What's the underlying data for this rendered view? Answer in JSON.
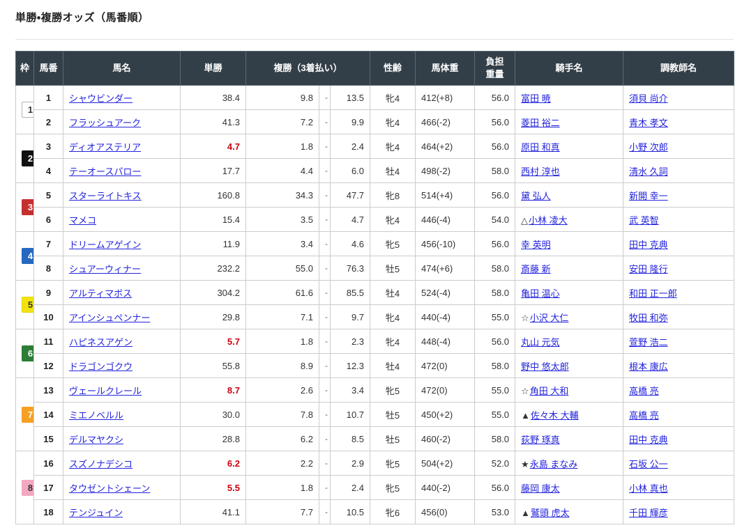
{
  "page": {
    "title": "単勝・複勝オッズ（馬番順）"
  },
  "colors": {
    "header_bg": "#333f48",
    "header_text": "#ffffff",
    "link_blue": "#2323dd",
    "odds_text": "#333333",
    "odds_highlight_red": "#cc0011",
    "grid_border": "#cccccc"
  },
  "table": {
    "headers": {
      "waku": "枠",
      "umaban": "馬番",
      "name": "馬名",
      "tansho": "単勝",
      "fukusho": "複勝（3着払い）",
      "seirei": "性齢",
      "bataiju": "馬体重",
      "futan": "負担重量",
      "kishu": "騎手名",
      "chokyoshi": "調教師名"
    },
    "separator": "-",
    "groups": [
      {
        "frame": "1",
        "frame_bg": "#ffffff",
        "frame_fg": "#333333",
        "frame_border": "#b3b3b3",
        "horses": [
          {
            "num": "1",
            "name": "シャウビンダー",
            "win": "38.4",
            "win_hot": false,
            "place_low": "9.8",
            "place_high": "13.5",
            "sex_age": "牝4",
            "weight": "412(+8)",
            "impost": "56.0",
            "jockey_mark": "",
            "jockey": "富田 暁",
            "trainer": "須貝 尚介"
          },
          {
            "num": "2",
            "name": "フラッシュアーク",
            "win": "41.3",
            "win_hot": false,
            "place_low": "7.2",
            "place_high": "9.9",
            "sex_age": "牝4",
            "weight": "466(-2)",
            "impost": "56.0",
            "jockey_mark": "",
            "jockey": "菱田 裕二",
            "trainer": "青木 孝文"
          }
        ]
      },
      {
        "frame": "2",
        "frame_bg": "#111111",
        "frame_fg": "#ffffff",
        "frame_border": "#111111",
        "horses": [
          {
            "num": "3",
            "name": "ディオアステリア",
            "win": "4.7",
            "win_hot": true,
            "place_low": "1.8",
            "place_high": "2.4",
            "sex_age": "牝4",
            "weight": "464(+2)",
            "impost": "56.0",
            "jockey_mark": "",
            "jockey": "原田 和真",
            "trainer": "小野 次郎"
          },
          {
            "num": "4",
            "name": "テーオースパロー",
            "win": "17.7",
            "win_hot": false,
            "place_low": "4.4",
            "place_high": "6.0",
            "sex_age": "牡4",
            "weight": "498(-2)",
            "impost": "58.0",
            "jockey_mark": "",
            "jockey": "西村 淳也",
            "trainer": "清水 久詞"
          }
        ]
      },
      {
        "frame": "3",
        "frame_bg": "#c5302e",
        "frame_fg": "#ffffff",
        "frame_border": "#c5302e",
        "horses": [
          {
            "num": "5",
            "name": "スターライトキス",
            "win": "160.8",
            "win_hot": false,
            "place_low": "34.3",
            "place_high": "47.7",
            "sex_age": "牝8",
            "weight": "514(+4)",
            "impost": "56.0",
            "jockey_mark": "",
            "jockey": "黛 弘人",
            "trainer": "新開 幸一"
          },
          {
            "num": "6",
            "name": "マメコ",
            "win": "15.4",
            "win_hot": false,
            "place_low": "3.5",
            "place_high": "4.7",
            "sex_age": "牝4",
            "weight": "446(-4)",
            "impost": "54.0",
            "jockey_mark": "△",
            "jockey": "小林 凌大",
            "trainer": "武 英智"
          }
        ]
      },
      {
        "frame": "4",
        "frame_bg": "#2668c0",
        "frame_fg": "#ffffff",
        "frame_border": "#2668c0",
        "horses": [
          {
            "num": "7",
            "name": "ドリームアゲイン",
            "win": "11.9",
            "win_hot": false,
            "place_low": "3.4",
            "place_high": "4.6",
            "sex_age": "牝5",
            "weight": "456(-10)",
            "impost": "56.0",
            "jockey_mark": "",
            "jockey": "幸 英明",
            "trainer": "田中 克典"
          },
          {
            "num": "8",
            "name": "シュアーウィナー",
            "win": "232.2",
            "win_hot": false,
            "place_low": "55.0",
            "place_high": "76.3",
            "sex_age": "牡5",
            "weight": "474(+6)",
            "impost": "58.0",
            "jockey_mark": "",
            "jockey": "斎藤 新",
            "trainer": "安田 隆行"
          }
        ]
      },
      {
        "frame": "5",
        "frame_bg": "#f2e30e",
        "frame_fg": "#333333",
        "frame_border": "#e3d40a",
        "horses": [
          {
            "num": "9",
            "name": "アルティマボス",
            "win": "304.2",
            "win_hot": false,
            "place_low": "61.6",
            "place_high": "85.5",
            "sex_age": "牡4",
            "weight": "524(-4)",
            "impost": "58.0",
            "jockey_mark": "",
            "jockey": "亀田 温心",
            "trainer": "和田 正一郎"
          },
          {
            "num": "10",
            "name": "アインシュペンナー",
            "win": "29.8",
            "win_hot": false,
            "place_low": "7.1",
            "place_high": "9.7",
            "sex_age": "牝4",
            "weight": "440(-4)",
            "impost": "55.0",
            "jockey_mark": "☆",
            "jockey": "小沢 大仁",
            "trainer": "牧田 和弥"
          }
        ]
      },
      {
        "frame": "6",
        "frame_bg": "#2c7d35",
        "frame_fg": "#ffffff",
        "frame_border": "#2c7d35",
        "horses": [
          {
            "num": "11",
            "name": "ハピネスアゲン",
            "win": "5.7",
            "win_hot": true,
            "place_low": "1.8",
            "place_high": "2.3",
            "sex_age": "牝4",
            "weight": "448(-4)",
            "impost": "56.0",
            "jockey_mark": "",
            "jockey": "丸山 元気",
            "trainer": "萱野 浩二"
          },
          {
            "num": "12",
            "name": "ドラゴンゴクウ",
            "win": "55.8",
            "win_hot": false,
            "place_low": "8.9",
            "place_high": "12.3",
            "sex_age": "牡4",
            "weight": "472(0)",
            "impost": "58.0",
            "jockey_mark": "",
            "jockey": "野中 悠太郎",
            "trainer": "根本 康広"
          }
        ]
      },
      {
        "frame": "7",
        "frame_bg": "#f5a024",
        "frame_fg": "#ffffff",
        "frame_border": "#f5a024",
        "horses": [
          {
            "num": "13",
            "name": "ヴェールクレール",
            "win": "8.7",
            "win_hot": true,
            "place_low": "2.6",
            "place_high": "3.4",
            "sex_age": "牝5",
            "weight": "472(0)",
            "impost": "55.0",
            "jockey_mark": "☆",
            "jockey": "角田 大和",
            "trainer": "高橋 亮"
          },
          {
            "num": "14",
            "name": "ミエノベルル",
            "win": "30.0",
            "win_hot": false,
            "place_low": "7.8",
            "place_high": "10.7",
            "sex_age": "牡5",
            "weight": "450(+2)",
            "impost": "55.0",
            "jockey_mark": "▲",
            "jockey": "佐々木 大輔",
            "trainer": "高橋 亮"
          },
          {
            "num": "15",
            "name": "デルマヤクシ",
            "win": "28.8",
            "win_hot": false,
            "place_low": "6.2",
            "place_high": "8.5",
            "sex_age": "牡5",
            "weight": "460(-2)",
            "impost": "58.0",
            "jockey_mark": "",
            "jockey": "荻野 琢真",
            "trainer": "田中 克典"
          }
        ]
      },
      {
        "frame": "8",
        "frame_bg": "#f3a8c0",
        "frame_fg": "#333333",
        "frame_border": "#f3a8c0",
        "horses": [
          {
            "num": "16",
            "name": "スズノナデシコ",
            "win": "6.2",
            "win_hot": true,
            "place_low": "2.2",
            "place_high": "2.9",
            "sex_age": "牝5",
            "weight": "504(+2)",
            "impost": "52.0",
            "jockey_mark": "★",
            "jockey": "永島 まなみ",
            "trainer": "石坂 公一"
          },
          {
            "num": "17",
            "name": "タウゼントシェーン",
            "win": "5.5",
            "win_hot": true,
            "place_low": "1.8",
            "place_high": "2.4",
            "sex_age": "牝5",
            "weight": "440(-2)",
            "impost": "56.0",
            "jockey_mark": "",
            "jockey": "藤岡 康太",
            "trainer": "小林 真也"
          },
          {
            "num": "18",
            "name": "テンジュイン",
            "win": "41.1",
            "win_hot": false,
            "place_low": "7.7",
            "place_high": "10.5",
            "sex_age": "牝6",
            "weight": "456(0)",
            "impost": "53.0",
            "jockey_mark": "▲",
            "jockey": "鷲頭 虎太",
            "trainer": "千田 輝彦"
          }
        ]
      }
    ]
  }
}
